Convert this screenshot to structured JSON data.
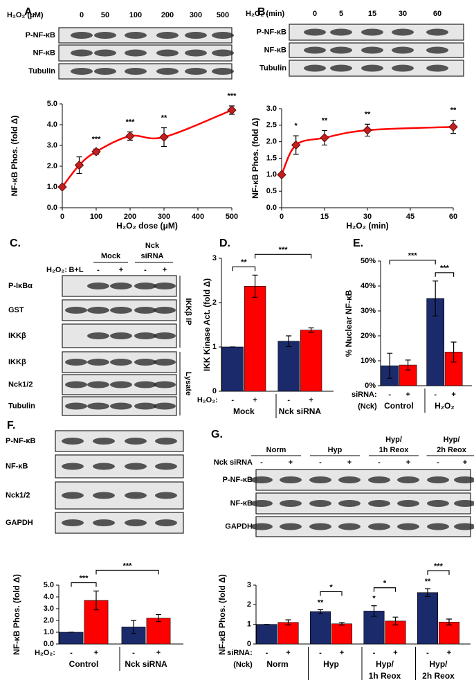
{
  "panel_labels": [
    "A.",
    "B.",
    "C.",
    "D.",
    "E.",
    "F.",
    "G."
  ],
  "blots": {
    "A": {
      "header": "H₂O₂ (μM)",
      "lanes": [
        "0",
        "50",
        "100",
        "200",
        "300",
        "500"
      ],
      "rows": [
        "P-NF-κB",
        "NF-κB",
        "Tubulin"
      ]
    },
    "B": {
      "header": "H₂O₂ (min)",
      "lanes": [
        "0",
        "5",
        "15",
        "30",
        "60"
      ],
      "rows": [
        "P-NF-κB",
        "NF-κB",
        "Tubulin"
      ]
    },
    "C": {
      "groups": [
        [
          "Mock"
        ],
        [
          "Nck",
          "siRNA"
        ]
      ],
      "treatment": "H₂O₂:",
      "lanes": [
        "B+L",
        "-",
        "+",
        "-",
        "+"
      ],
      "rows": [
        "P-IκBα",
        "GST",
        "IKKβ",
        "IKKβ",
        "Nck1/2",
        "Tubulin"
      ],
      "sections": [
        "IKKβ IP",
        "Lysate"
      ]
    },
    "F": {
      "rows": [
        "P-NF-κB",
        "NF-κB",
        "Nck1/2",
        "GAPDH"
      ]
    },
    "G": {
      "groups": [
        [
          "Norm"
        ],
        [
          "Hyp"
        ],
        [
          "Hyp/",
          "1h Reox"
        ],
        [
          "Hyp/",
          "2h Reox"
        ]
      ],
      "treatment": "Nck siRNA",
      "lanes": [
        "-",
        "+",
        "-",
        "+",
        "-",
        "+",
        "-",
        "+"
      ],
      "rows": [
        "P-NF-κB",
        "NF-κB",
        "GAPDH"
      ]
    }
  },
  "chart_data": [
    {
      "type": "line",
      "ylabel": "NF-κB Phos. (fold Δ)",
      "xlabel": "H₂O₂ dose (μM)",
      "color": "#ff0000",
      "x": [
        0,
        50,
        100,
        200,
        300,
        500
      ],
      "values": [
        1.0,
        2.05,
        2.7,
        3.45,
        3.4,
        4.7
      ],
      "errors": [
        0,
        0.4,
        0.12,
        0.2,
        0.45,
        0.2
      ],
      "labels": [
        null,
        null,
        "***",
        "***",
        "**",
        "***"
      ],
      "xlim": [
        0,
        500
      ],
      "xticks": [
        0,
        100,
        200,
        300,
        400,
        500
      ],
      "ylim": [
        0,
        5
      ],
      "yticks": [
        {
          "value": 0,
          "label": "0.0"
        },
        {
          "value": 1,
          "label": "1.0"
        },
        {
          "value": 2,
          "label": "2.0"
        },
        {
          "value": 3,
          "label": "3.0"
        },
        {
          "value": 4,
          "label": "4.0"
        },
        {
          "value": 5,
          "label": "5.0"
        }
      ]
    },
    {
      "type": "line",
      "ylabel": "NF-κB Phos. (fold Δ)",
      "xlabel": "H₂O₂ (min)",
      "color": "#ff0000",
      "x": [
        0,
        5,
        15,
        30,
        60
      ],
      "values": [
        1.0,
        1.9,
        2.12,
        2.35,
        2.45
      ],
      "errors": [
        0,
        0.28,
        0.22,
        0.18,
        0.2
      ],
      "labels": [
        null,
        "*",
        "**",
        "**",
        "**"
      ],
      "xlim": [
        0,
        60
      ],
      "xticks": [
        0,
        15,
        30,
        45,
        60
      ],
      "ylim": [
        0,
        3
      ],
      "yticks": [
        {
          "value": 0,
          "label": "0.0"
        },
        0.5,
        {
          "value": 1,
          "label": "1.0"
        },
        1.5,
        {
          "value": 2,
          "label": "2.0"
        },
        2.5,
        {
          "value": 3,
          "label": "3.0"
        }
      ]
    },
    {
      "type": "bar",
      "ylabel": "IKK Kinase Act. (fold Δ)",
      "treatment": [
        "H₂O₂:"
      ],
      "groups": [
        [
          "Mock"
        ],
        [
          "Nck siRNA"
        ]
      ],
      "categories": [
        "-",
        "+",
        "-",
        "+"
      ],
      "values": [
        1.0,
        2.37,
        1.13,
        1.38
      ],
      "errors": [
        0,
        0.25,
        0.12,
        0.05
      ],
      "colors": [
        "#1b2a6b",
        "#ff0000",
        "#1b2a6b",
        "#ff0000"
      ],
      "annotations": [
        {
          "text": "**",
          "bars": [
            0,
            1
          ]
        },
        {
          "text": "***",
          "bars": [
            1,
            3
          ]
        }
      ],
      "ylim": [
        0,
        3
      ],
      "yticks": [
        0,
        1,
        2,
        3
      ]
    },
    {
      "type": "bar",
      "ylabel": "% Nuclear NF-κB",
      "treatment": [
        "siRNA:",
        "(Nck)"
      ],
      "groups": [
        [
          "Control"
        ],
        [
          "H₂O₂"
        ]
      ],
      "categories": [
        "-",
        "+",
        "-",
        "+"
      ],
      "values": [
        8,
        8.3,
        35,
        13.5
      ],
      "errors": [
        5,
        2,
        7,
        4
      ],
      "colors": [
        "#1b2a6b",
        "#ff0000",
        "#1b2a6b",
        "#ff0000"
      ],
      "annotations": [
        {
          "text": "***",
          "bars": [
            2,
            3
          ]
        },
        {
          "text": "***",
          "bars": [
            0,
            2
          ]
        }
      ],
      "ylim": [
        0,
        50
      ],
      "yticks": [
        {
          "value": 0,
          "label": "0%"
        },
        {
          "value": 10,
          "label": "10%"
        },
        {
          "value": 20,
          "label": "20%"
        },
        {
          "value": 30,
          "label": "30%"
        },
        {
          "value": 40,
          "label": "40%"
        },
        {
          "value": 50,
          "label": "50%"
        }
      ]
    },
    {
      "type": "bar",
      "ylabel": "NF-κB Phos. (fold Δ)",
      "treatment": [
        "H₂O₂:"
      ],
      "groups": [
        [
          "Control"
        ],
        [
          "Nck siRNA"
        ]
      ],
      "categories": [
        "-",
        "+",
        "-",
        "+"
      ],
      "values": [
        1.0,
        3.7,
        1.45,
        2.2
      ],
      "errors": [
        0,
        0.8,
        0.55,
        0.3
      ],
      "colors": [
        "#1b2a6b",
        "#ff0000",
        "#1b2a6b",
        "#ff0000"
      ],
      "annotations": [
        {
          "text": "***",
          "bars": [
            0,
            1
          ]
        },
        {
          "text": "***",
          "bars": [
            1,
            3
          ]
        }
      ],
      "ylim": [
        0,
        5
      ],
      "yticks": [
        {
          "value": 0,
          "label": "0.0"
        },
        {
          "value": 1,
          "label": "1.0"
        },
        {
          "value": 2,
          "label": "2.0"
        },
        {
          "value": 3,
          "label": "3.0"
        },
        {
          "value": 4,
          "label": "4.0"
        },
        {
          "value": 5,
          "label": "5.0"
        }
      ]
    },
    {
      "type": "bar",
      "ylabel": "NF-κB Phos. (fold Δ)",
      "treatment": [
        "siRNA:",
        "(Nck)"
      ],
      "groups": [
        [
          "Norm"
        ],
        [
          "Hyp"
        ],
        [
          "Hyp/",
          "1h Reox"
        ],
        [
          "Hyp/",
          "2h Reox"
        ]
      ],
      "categories": [
        "-",
        "+",
        "-",
        "+",
        "-",
        "+",
        "-",
        "+"
      ],
      "values": [
        1.0,
        1.1,
        1.65,
        1.03,
        1.68,
        1.17,
        2.62,
        1.12
      ],
      "errors": [
        0,
        0.13,
        0.1,
        0.07,
        0.27,
        0.2,
        0.2,
        0.15
      ],
      "labels": [
        null,
        null,
        "**",
        null,
        "*",
        null,
        "**",
        null
      ],
      "colors": [
        "#1b2a6b",
        "#ff0000",
        "#1b2a6b",
        "#ff0000",
        "#1b2a6b",
        "#ff0000",
        "#1b2a6b",
        "#ff0000"
      ],
      "annotations": [
        {
          "text": "*",
          "bars": [
            2,
            3
          ]
        },
        {
          "text": "*",
          "bars": [
            4,
            5
          ]
        },
        {
          "text": "***",
          "bars": [
            6,
            7
          ]
        }
      ],
      "ylim": [
        0,
        3
      ],
      "yticks": [
        0,
        1,
        2,
        3
      ]
    }
  ]
}
